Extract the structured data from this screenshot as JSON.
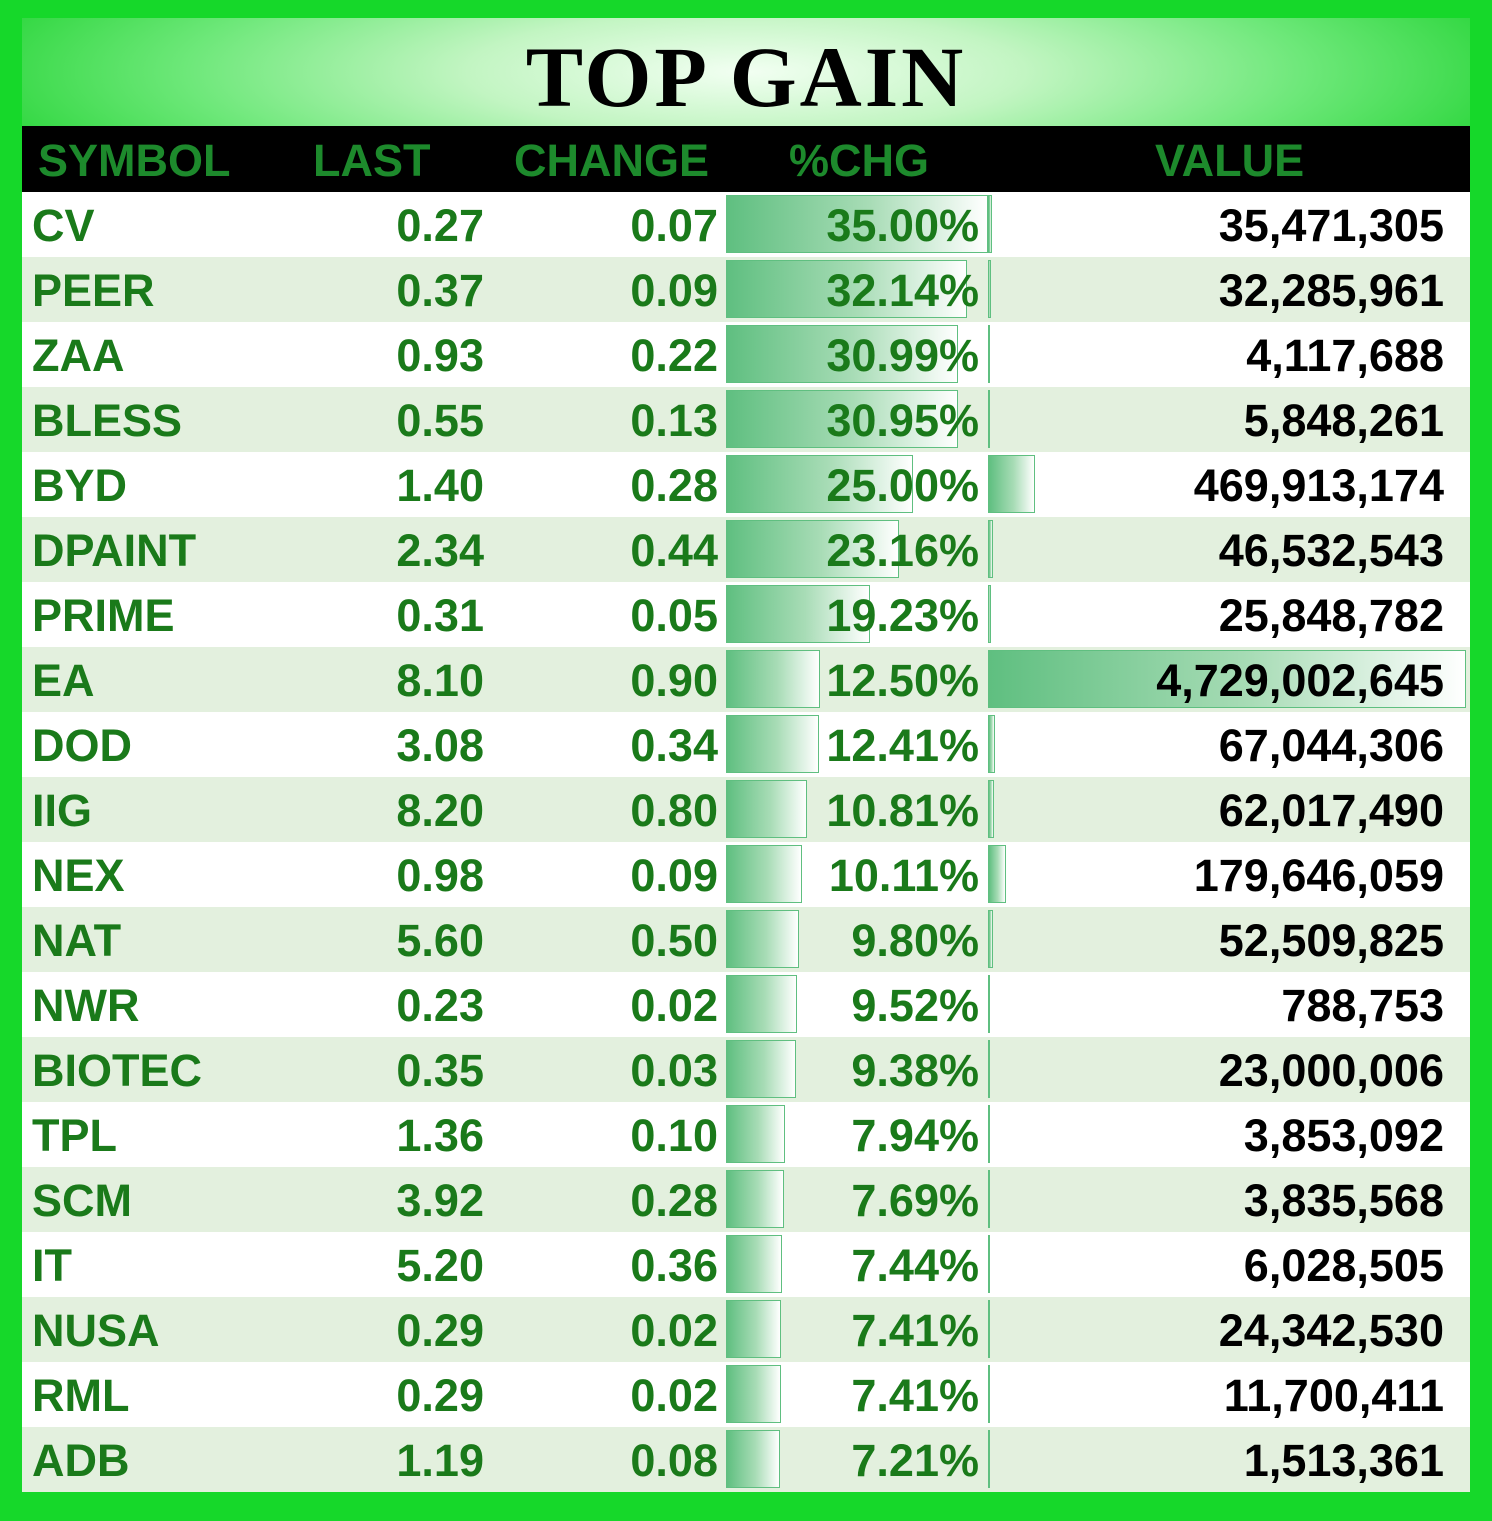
{
  "title": "TOP GAIN",
  "columns": {
    "symbol": "SYMBOL",
    "last": "LAST",
    "change": "CHANGE",
    "pct_chg": "%CHG",
    "value": "VALUE"
  },
  "colors": {
    "frame": "#16d82a",
    "header_bg": "#000000",
    "header_text": "#1d8a2c",
    "row_text": "#1a7a1a",
    "value_text": "#000000",
    "row_alt": "#e3f0de",
    "data_bar": "#5fbf80"
  },
  "rows": [
    {
      "symbol": "CV",
      "last": "0.27",
      "change": "0.07",
      "pct_chg": "35.00%",
      "value": "35,471,305",
      "pct_num": 35.0,
      "value_num": 35471305
    },
    {
      "symbol": "PEER",
      "last": "0.37",
      "change": "0.09",
      "pct_chg": "32.14%",
      "value": "32,285,961",
      "pct_num": 32.14,
      "value_num": 32285961
    },
    {
      "symbol": "ZAA",
      "last": "0.93",
      "change": "0.22",
      "pct_chg": "30.99%",
      "value": "4,117,688",
      "pct_num": 30.99,
      "value_num": 4117688
    },
    {
      "symbol": "BLESS",
      "last": "0.55",
      "change": "0.13",
      "pct_chg": "30.95%",
      "value": "5,848,261",
      "pct_num": 30.95,
      "value_num": 5848261
    },
    {
      "symbol": "BYD",
      "last": "1.40",
      "change": "0.28",
      "pct_chg": "25.00%",
      "value": "469,913,174",
      "pct_num": 25.0,
      "value_num": 469913174
    },
    {
      "symbol": "DPAINT",
      "last": "2.34",
      "change": "0.44",
      "pct_chg": "23.16%",
      "value": "46,532,543",
      "pct_num": 23.16,
      "value_num": 46532543
    },
    {
      "symbol": "PRIME",
      "last": "0.31",
      "change": "0.05",
      "pct_chg": "19.23%",
      "value": "25,848,782",
      "pct_num": 19.23,
      "value_num": 25848782
    },
    {
      "symbol": "EA",
      "last": "8.10",
      "change": "0.90",
      "pct_chg": "12.50%",
      "value": "4,729,002,645",
      "pct_num": 12.5,
      "value_num": 4729002645
    },
    {
      "symbol": "DOD",
      "last": "3.08",
      "change": "0.34",
      "pct_chg": "12.41%",
      "value": "67,044,306",
      "pct_num": 12.41,
      "value_num": 67044306
    },
    {
      "symbol": "IIG",
      "last": "8.20",
      "change": "0.80",
      "pct_chg": "10.81%",
      "value": "62,017,490",
      "pct_num": 10.81,
      "value_num": 62017490
    },
    {
      "symbol": "NEX",
      "last": "0.98",
      "change": "0.09",
      "pct_chg": "10.11%",
      "value": "179,646,059",
      "pct_num": 10.11,
      "value_num": 179646059
    },
    {
      "symbol": "NAT",
      "last": "5.60",
      "change": "0.50",
      "pct_chg": "9.80%",
      "value": "52,509,825",
      "pct_num": 9.8,
      "value_num": 52509825
    },
    {
      "symbol": "NWR",
      "last": "0.23",
      "change": "0.02",
      "pct_chg": "9.52%",
      "value": "788,753",
      "pct_num": 9.52,
      "value_num": 788753
    },
    {
      "symbol": "BIOTEC",
      "last": "0.35",
      "change": "0.03",
      "pct_chg": "9.38%",
      "value": "23,000,006",
      "pct_num": 9.38,
      "value_num": 23000006
    },
    {
      "symbol": "TPL",
      "last": "1.36",
      "change": "0.10",
      "pct_chg": "7.94%",
      "value": "3,853,092",
      "pct_num": 7.94,
      "value_num": 3853092
    },
    {
      "symbol": "SCM",
      "last": "3.92",
      "change": "0.28",
      "pct_chg": "7.69%",
      "value": "3,835,568",
      "pct_num": 7.69,
      "value_num": 3835568
    },
    {
      "symbol": "IT",
      "last": "5.20",
      "change": "0.36",
      "pct_chg": "7.44%",
      "value": "6,028,505",
      "pct_num": 7.44,
      "value_num": 6028505
    },
    {
      "symbol": "NUSA",
      "last": "0.29",
      "change": "0.02",
      "pct_chg": "7.41%",
      "value": "24,342,530",
      "pct_num": 7.41,
      "value_num": 24342530
    },
    {
      "symbol": "RML",
      "last": "0.29",
      "change": "0.02",
      "pct_chg": "7.41%",
      "value": "11,700,411",
      "pct_num": 7.41,
      "value_num": 11700411
    },
    {
      "symbol": "ADB",
      "last": "1.19",
      "change": "0.08",
      "pct_chg": "7.21%",
      "value": "1,513,361",
      "pct_num": 7.21,
      "value_num": 1513361
    }
  ]
}
